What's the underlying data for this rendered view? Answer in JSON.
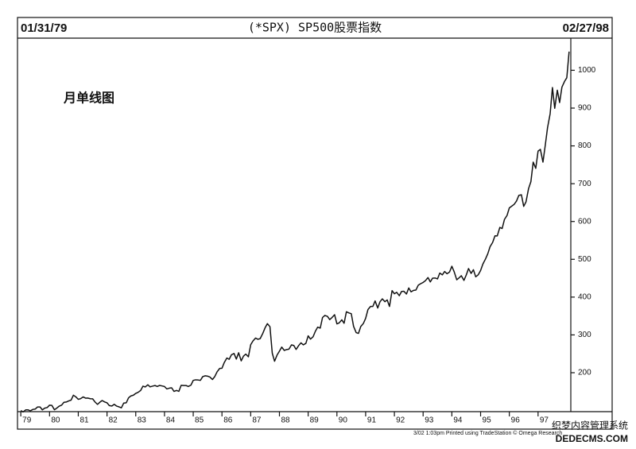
{
  "chart_data": {
    "type": "line",
    "title": "(*SPX) SP500股票指数",
    "start_date": "01/31/79",
    "end_date": "02/27/98",
    "annotation": "月单线图",
    "footer": "3/02 1:03pm Printed using TradeStation © Omega Research",
    "watermark": [
      "织梦内容管理系统",
      "DEDECMS.COM"
    ],
    "color": "#111111",
    "grid": false,
    "x": [
      1979.0,
      1979.08,
      1979.17,
      1979.25,
      1979.33,
      1979.42,
      1979.5,
      1979.58,
      1979.67,
      1979.75,
      1979.83,
      1979.92,
      1980.0,
      1980.08,
      1980.17,
      1980.25,
      1980.33,
      1980.42,
      1980.5,
      1980.58,
      1980.67,
      1980.75,
      1980.83,
      1980.92,
      1981.0,
      1981.08,
      1981.17,
      1981.25,
      1981.33,
      1981.42,
      1981.5,
      1981.58,
      1981.67,
      1981.75,
      1981.83,
      1981.92,
      1982.0,
      1982.08,
      1982.17,
      1982.25,
      1982.33,
      1982.42,
      1982.5,
      1982.58,
      1982.67,
      1982.75,
      1982.83,
      1982.92,
      1983.0,
      1983.08,
      1983.17,
      1983.25,
      1983.33,
      1983.42,
      1983.5,
      1983.58,
      1983.67,
      1983.75,
      1983.83,
      1983.92,
      1984.0,
      1984.08,
      1984.17,
      1984.25,
      1984.33,
      1984.42,
      1984.5,
      1984.58,
      1984.67,
      1984.75,
      1984.83,
      1984.92,
      1985.0,
      1985.08,
      1985.17,
      1985.25,
      1985.33,
      1985.42,
      1985.5,
      1985.58,
      1985.67,
      1985.75,
      1985.83,
      1985.92,
      1986.0,
      1986.08,
      1986.17,
      1986.25,
      1986.33,
      1986.42,
      1986.5,
      1986.58,
      1986.67,
      1986.75,
      1986.83,
      1986.92,
      1987.0,
      1987.08,
      1987.17,
      1987.25,
      1987.33,
      1987.42,
      1987.5,
      1987.58,
      1987.67,
      1987.75,
      1987.83,
      1987.92,
      1988.0,
      1988.08,
      1988.17,
      1988.25,
      1988.33,
      1988.42,
      1988.5,
      1988.58,
      1988.67,
      1988.75,
      1988.83,
      1988.92,
      1989.0,
      1989.08,
      1989.17,
      1989.25,
      1989.33,
      1989.42,
      1989.5,
      1989.58,
      1989.67,
      1989.75,
      1989.83,
      1989.92,
      1990.0,
      1990.08,
      1990.17,
      1990.25,
      1990.33,
      1990.42,
      1990.5,
      1990.58,
      1990.67,
      1990.75,
      1990.83,
      1990.92,
      1991.0,
      1991.08,
      1991.17,
      1991.25,
      1991.33,
      1991.42,
      1991.5,
      1991.58,
      1991.67,
      1991.75,
      1991.83,
      1991.92,
      1992.0,
      1992.08,
      1992.17,
      1992.25,
      1992.33,
      1992.42,
      1992.5,
      1992.58,
      1992.67,
      1992.75,
      1992.83,
      1992.92,
      1993.0,
      1993.08,
      1993.17,
      1993.25,
      1993.33,
      1993.42,
      1993.5,
      1993.58,
      1993.67,
      1993.75,
      1993.83,
      1993.92,
      1994.0,
      1994.08,
      1994.17,
      1994.25,
      1994.33,
      1994.42,
      1994.5,
      1994.58,
      1994.67,
      1994.75,
      1994.83,
      1994.92,
      1995.0,
      1995.08,
      1995.17,
      1995.25,
      1995.33,
      1995.42,
      1995.5,
      1995.58,
      1995.67,
      1995.75,
      1995.83,
      1995.92,
      1996.0,
      1996.08,
      1996.17,
      1996.25,
      1996.33,
      1996.42,
      1996.5,
      1996.58,
      1996.67,
      1996.75,
      1996.83,
      1996.92,
      1997.0,
      1997.08,
      1997.17,
      1997.25,
      1997.33,
      1997.42,
      1997.5,
      1997.58,
      1997.67,
      1997.75,
      1997.83,
      1997.92,
      1998.0,
      1998.08
    ],
    "values": [
      99.9,
      96.3,
      101.6,
      101.8,
      99.1,
      102.9,
      103.8,
      109.3,
      109.3,
      101.8,
      106.2,
      107.9,
      114.2,
      113.7,
      102.1,
      106.3,
      111.2,
      114.2,
      121.7,
      122.4,
      125.5,
      127.5,
      140.5,
      135.8,
      129.6,
      131.3,
      136.0,
      132.8,
      133.0,
      131.2,
      130.9,
      122.8,
      116.2,
      121.9,
      126.4,
      122.6,
      120.4,
      113.1,
      112.0,
      116.4,
      111.9,
      109.6,
      107.1,
      119.5,
      120.4,
      133.7,
      138.5,
      140.6,
      145.3,
      148.1,
      153.0,
      164.4,
      162.4,
      168.1,
      162.6,
      164.4,
      166.1,
      163.6,
      166.4,
      164.9,
      163.4,
      157.1,
      159.2,
      160.1,
      150.6,
      153.2,
      150.7,
      166.7,
      166.1,
      166.1,
      163.6,
      167.2,
      179.6,
      181.2,
      180.7,
      179.8,
      189.6,
      191.9,
      190.9,
      188.6,
      182.1,
      189.8,
      202.2,
      211.3,
      211.8,
      226.9,
      238.9,
      235.5,
      247.4,
      250.8,
      236.1,
      252.9,
      231.3,
      244.0,
      249.2,
      242.2,
      274.1,
      284.2,
      291.7,
      288.4,
      290.1,
      304.0,
      318.7,
      329.8,
      321.8,
      251.8,
      230.3,
      247.1,
      257.1,
      267.8,
      258.9,
      261.3,
      262.2,
      273.5,
      272.0,
      261.5,
      271.9,
      279.0,
      273.7,
      277.7,
      297.5,
      288.9,
      294.9,
      309.6,
      320.5,
      318.0,
      346.1,
      351.5,
      349.2,
      340.4,
      346.0,
      353.4,
      329.1,
      331.9,
      339.9,
      330.8,
      361.2,
      358.0,
      356.2,
      322.6,
      306.1,
      304.0,
      322.2,
      330.2,
      343.9,
      367.1,
      375.2,
      375.3,
      389.8,
      371.2,
      387.8,
      395.4,
      387.9,
      392.5,
      375.2,
      417.1,
      408.8,
      412.7,
      403.7,
      415.0,
      415.4,
      408.1,
      424.2,
      414.0,
      417.8,
      418.7,
      431.4,
      435.7,
      438.8,
      443.4,
      451.7,
      440.2,
      450.2,
      450.5,
      448.1,
      463.6,
      458.9,
      467.8,
      461.8,
      466.5,
      481.6,
      467.1,
      445.8,
      450.9,
      456.5,
      444.3,
      458.3,
      475.5,
      462.7,
      472.4,
      453.7,
      459.3,
      470.4,
      487.4,
      500.7,
      514.7,
      533.4,
      544.8,
      562.1,
      561.9,
      584.4,
      581.5,
      605.4,
      615.9,
      636.0,
      640.4,
      645.5,
      654.2,
      669.1,
      670.6,
      640.0,
      652.0,
      687.3,
      705.3,
      757.0,
      740.7,
      786.2,
      790.8,
      757.1,
      801.3,
      848.3,
      885.1,
      954.3,
      899.5,
      947.3,
      914.6,
      955.4,
      970.4,
      980.3,
      1049.3
    ],
    "xlim": [
      1978.94,
      1998.25
    ],
    "xticks": [
      {
        "value": 1979,
        "label": "79"
      },
      {
        "value": 1980,
        "label": "80"
      },
      {
        "value": 1981,
        "label": "81"
      },
      {
        "value": 1982,
        "label": "82"
      },
      {
        "value": 1983,
        "label": "83"
      },
      {
        "value": 1984,
        "label": "84"
      },
      {
        "value": 1985,
        "label": "85"
      },
      {
        "value": 1986,
        "label": "86"
      },
      {
        "value": 1987,
        "label": "87"
      },
      {
        "value": 1988,
        "label": "88"
      },
      {
        "value": 1989,
        "label": "89"
      },
      {
        "value": 1990,
        "label": "90"
      },
      {
        "value": 1991,
        "label": "91"
      },
      {
        "value": 1992,
        "label": "92"
      },
      {
        "value": 1993,
        "label": "93"
      },
      {
        "value": 1994,
        "label": "94"
      },
      {
        "value": 1995,
        "label": "95"
      },
      {
        "value": 1996,
        "label": "96"
      },
      {
        "value": 1997,
        "label": "97"
      }
    ],
    "ylim": [
      97,
      1085
    ],
    "yticks": [
      200,
      300,
      400,
      500,
      600,
      700,
      800,
      900,
      1000
    ]
  }
}
